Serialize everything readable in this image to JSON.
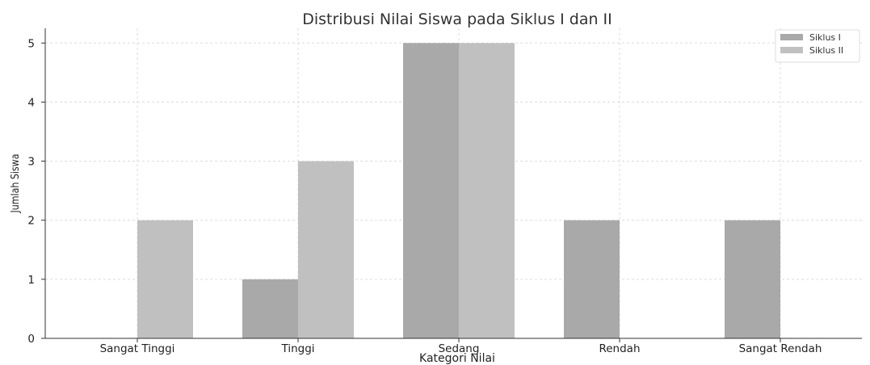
{
  "chart_data": {
    "type": "bar",
    "title": "Distribusi Nilai Siswa pada Siklus I dan II",
    "xlabel": "Kategori Nilai",
    "ylabel": "Jumlah Siswa",
    "categories": [
      "Sangat Tinggi",
      "Tinggi",
      "Sedang",
      "Rendah",
      "Sangat Rendah"
    ],
    "series": [
      {
        "name": "Siklus I",
        "values": [
          0,
          1,
          5,
          2,
          2
        ],
        "color": "#a9a9a9"
      },
      {
        "name": "Siklus II",
        "values": [
          2,
          3,
          5,
          0,
          0
        ],
        "color": "#c0c0c0"
      }
    ],
    "ylim": [
      0,
      5.25
    ],
    "yticks": [
      0,
      1,
      2,
      3,
      4,
      5
    ],
    "grid": true,
    "legend_position": "top-right"
  }
}
